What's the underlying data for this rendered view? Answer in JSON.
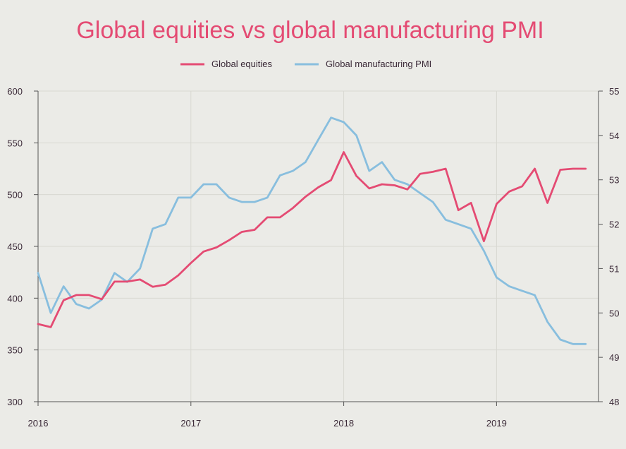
{
  "chart_data": {
    "type": "line",
    "title": "Global equities vs global manufacturing PMI",
    "x_ticks": [
      "2016",
      "2017",
      "2018",
      "2019"
    ],
    "x_tick_positions": [
      2016.0,
      2017.0,
      2018.0,
      2019.0
    ],
    "xlim": [
      2016.0,
      2019.667
    ],
    "y_left": {
      "lim": [
        300,
        600
      ],
      "ticks": [
        "300",
        "350",
        "400",
        "450",
        "500",
        "550",
        "600"
      ]
    },
    "y_right": {
      "lim": [
        48,
        55
      ],
      "ticks": [
        "48",
        "49",
        "50",
        "51",
        "52",
        "53",
        "54",
        "55"
      ]
    },
    "grid": true,
    "legend": "top-center",
    "series": [
      {
        "name": "Global equities",
        "axis": "left",
        "color": "#e44b73",
        "x": [
          2016.0,
          2016.083,
          2016.167,
          2016.25,
          2016.333,
          2016.417,
          2016.5,
          2016.583,
          2016.667,
          2016.75,
          2016.833,
          2016.917,
          2017.0,
          2017.083,
          2017.167,
          2017.25,
          2017.333,
          2017.417,
          2017.5,
          2017.583,
          2017.667,
          2017.75,
          2017.833,
          2017.917,
          2018.0,
          2018.083,
          2018.167,
          2018.25,
          2018.333,
          2018.417,
          2018.5,
          2018.583,
          2018.667,
          2018.75,
          2018.833,
          2018.917,
          2019.0,
          2019.083,
          2019.167,
          2019.25,
          2019.333,
          2019.417,
          2019.5,
          2019.583
        ],
        "values": [
          375,
          372,
          398,
          403,
          403,
          399,
          416,
          416,
          418,
          411,
          413,
          422,
          434,
          445,
          449,
          456,
          464,
          466,
          478,
          478,
          487,
          498,
          507,
          514,
          541,
          518,
          506,
          510,
          509,
          505,
          520,
          522,
          525,
          485,
          492,
          455,
          491,
          503,
          508,
          525,
          492,
          524,
          525,
          525
        ]
      },
      {
        "name": "Global manufacturing PMI",
        "axis": "right",
        "color": "#88bede",
        "x": [
          2016.0,
          2016.083,
          2016.167,
          2016.25,
          2016.333,
          2016.417,
          2016.5,
          2016.583,
          2016.667,
          2016.75,
          2016.833,
          2016.917,
          2017.0,
          2017.083,
          2017.167,
          2017.25,
          2017.333,
          2017.417,
          2017.5,
          2017.583,
          2017.667,
          2017.75,
          2017.833,
          2017.917,
          2018.0,
          2018.083,
          2018.167,
          2018.25,
          2018.333,
          2018.417,
          2018.5,
          2018.583,
          2018.667,
          2018.75,
          2018.833,
          2018.917,
          2019.0,
          2019.083,
          2019.167,
          2019.25,
          2019.333,
          2019.417,
          2019.5,
          2019.583
        ],
        "values": [
          50.9,
          50.0,
          50.6,
          50.2,
          50.1,
          50.3,
          50.9,
          50.7,
          51.0,
          51.9,
          52.0,
          52.6,
          52.6,
          52.9,
          52.9,
          52.6,
          52.5,
          52.5,
          52.6,
          53.1,
          53.2,
          53.4,
          53.9,
          54.4,
          54.3,
          54.0,
          53.2,
          53.4,
          53.0,
          52.9,
          52.7,
          52.5,
          52.1,
          52.0,
          51.9,
          51.4,
          50.8,
          50.6,
          50.5,
          50.4,
          49.8,
          49.4,
          49.3,
          49.3
        ]
      }
    ]
  },
  "colors": {
    "title": "#e44b73",
    "background": "#ebebe7",
    "grid": "#d8d8d2",
    "axis": "#555555",
    "tick_text": "#3b2a38"
  }
}
